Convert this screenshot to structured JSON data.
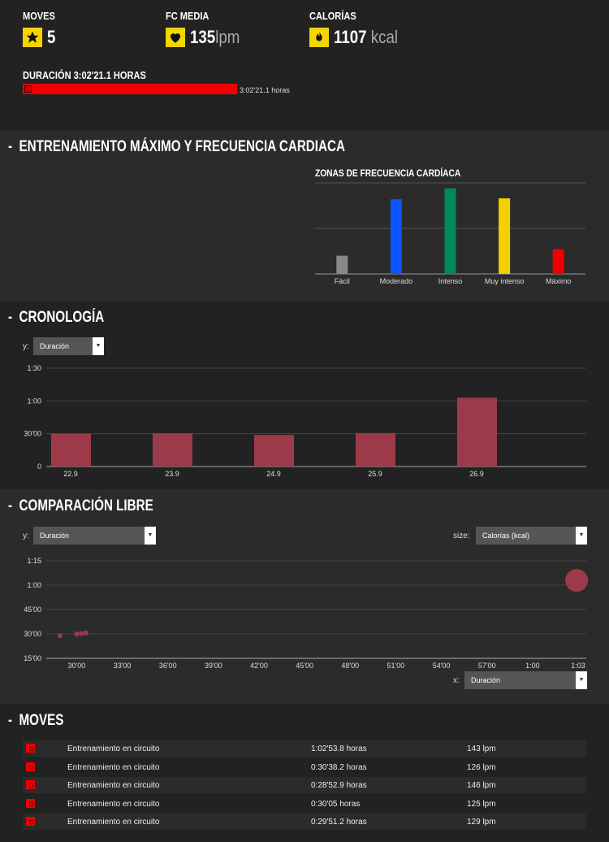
{
  "stats": {
    "moves_label": "MOVES",
    "moves_value": "5",
    "fc_label": "FC MEDIA",
    "fc_value": "135",
    "fc_unit": "lpm",
    "cal_label": "CALORÍAS",
    "cal_value": "1107",
    "cal_unit": "kcal",
    "duration_label": "DURACIÓN 3:02'21.1 HORAS",
    "duration_bar_text": "3:02'21.1 horas"
  },
  "sections": {
    "training": "ENTRENAMIENTO MÁXIMO Y FRECUENCIA CARDIACA",
    "chronology": "CRONOLOGÍA",
    "comparison": "COMPARACIÓN LIBRE",
    "moves": "MOVES",
    "collapse_symbol": "-"
  },
  "hr_zones": {
    "title": "ZONAS DE FRECUENCIA CARDÍACA"
  },
  "chronology": {
    "y_label": "y:",
    "y_select": "Duración"
  },
  "comparison": {
    "y_label": "y:",
    "y_select": "Duración",
    "size_label": "size:",
    "size_select": "Calorías (kcal)",
    "x_label": "x:",
    "x_select": "Duración"
  },
  "chart_data": [
    {
      "type": "bar",
      "title": "ZONAS DE FRECUENCIA CARDÍACA",
      "categories": [
        "Fácil",
        "Moderado",
        "Intenso",
        "Muy intenso",
        "Máximo"
      ],
      "values": [
        20,
        82,
        94,
        83,
        27
      ],
      "ylim": [
        0,
        100
      ],
      "colors": [
        "#888888",
        "#0a55ff",
        "#00885f",
        "#f5d000",
        "#f20000"
      ],
      "grid": true
    },
    {
      "type": "bar",
      "categories": [
        "22.9",
        "23.9",
        "24.9",
        "25.9",
        "26.9"
      ],
      "values": [
        30,
        30.5,
        28.9,
        30.6,
        63
      ],
      "y_ticks": [
        "0",
        "30'00",
        "1:00",
        "1:30"
      ],
      "ylim": [
        0,
        90
      ],
      "color": "#9c3a4a",
      "grid": true
    },
    {
      "type": "scatter",
      "x_ticks": [
        "30'00",
        "33'00",
        "36'00",
        "39'00",
        "42'00",
        "45'00",
        "48'00",
        "51'00",
        "54'00",
        "57'00",
        "1:00",
        "1:03"
      ],
      "y_ticks": [
        "15'00",
        "30'00",
        "45'00",
        "1:00",
        "1:15"
      ],
      "xlim": [
        28,
        63
      ],
      "ylim": [
        15,
        75
      ],
      "points": [
        {
          "x": 28.9,
          "y": 28.9,
          "size": 3
        },
        {
          "x": 30.0,
          "y": 30.0,
          "size": 3
        },
        {
          "x": 30.3,
          "y": 30.3,
          "size": 3
        },
        {
          "x": 30.6,
          "y": 30.6,
          "size": 3
        },
        {
          "x": 62.9,
          "y": 62.9,
          "size": 14
        }
      ],
      "color": "#9c3a4a",
      "grid": true
    }
  ],
  "moves": [
    {
      "name": "Entrenamiento en circuito",
      "duration": "1:02'53.8 horas",
      "hr": "143 lpm"
    },
    {
      "name": "Entrenamiento en circuito",
      "duration": "0:30'38.2 horas",
      "hr": "126 lpm"
    },
    {
      "name": "Entrenamiento en circuito",
      "duration": "0:28'52.9 horas",
      "hr": "146 lpm"
    },
    {
      "name": "Entrenamiento en circuito",
      "duration": "0:30'05 horas",
      "hr": "125 lpm"
    },
    {
      "name": "Entrenamiento en circuito",
      "duration": "0:29'51.2 horas",
      "hr": "129 lpm"
    }
  ]
}
